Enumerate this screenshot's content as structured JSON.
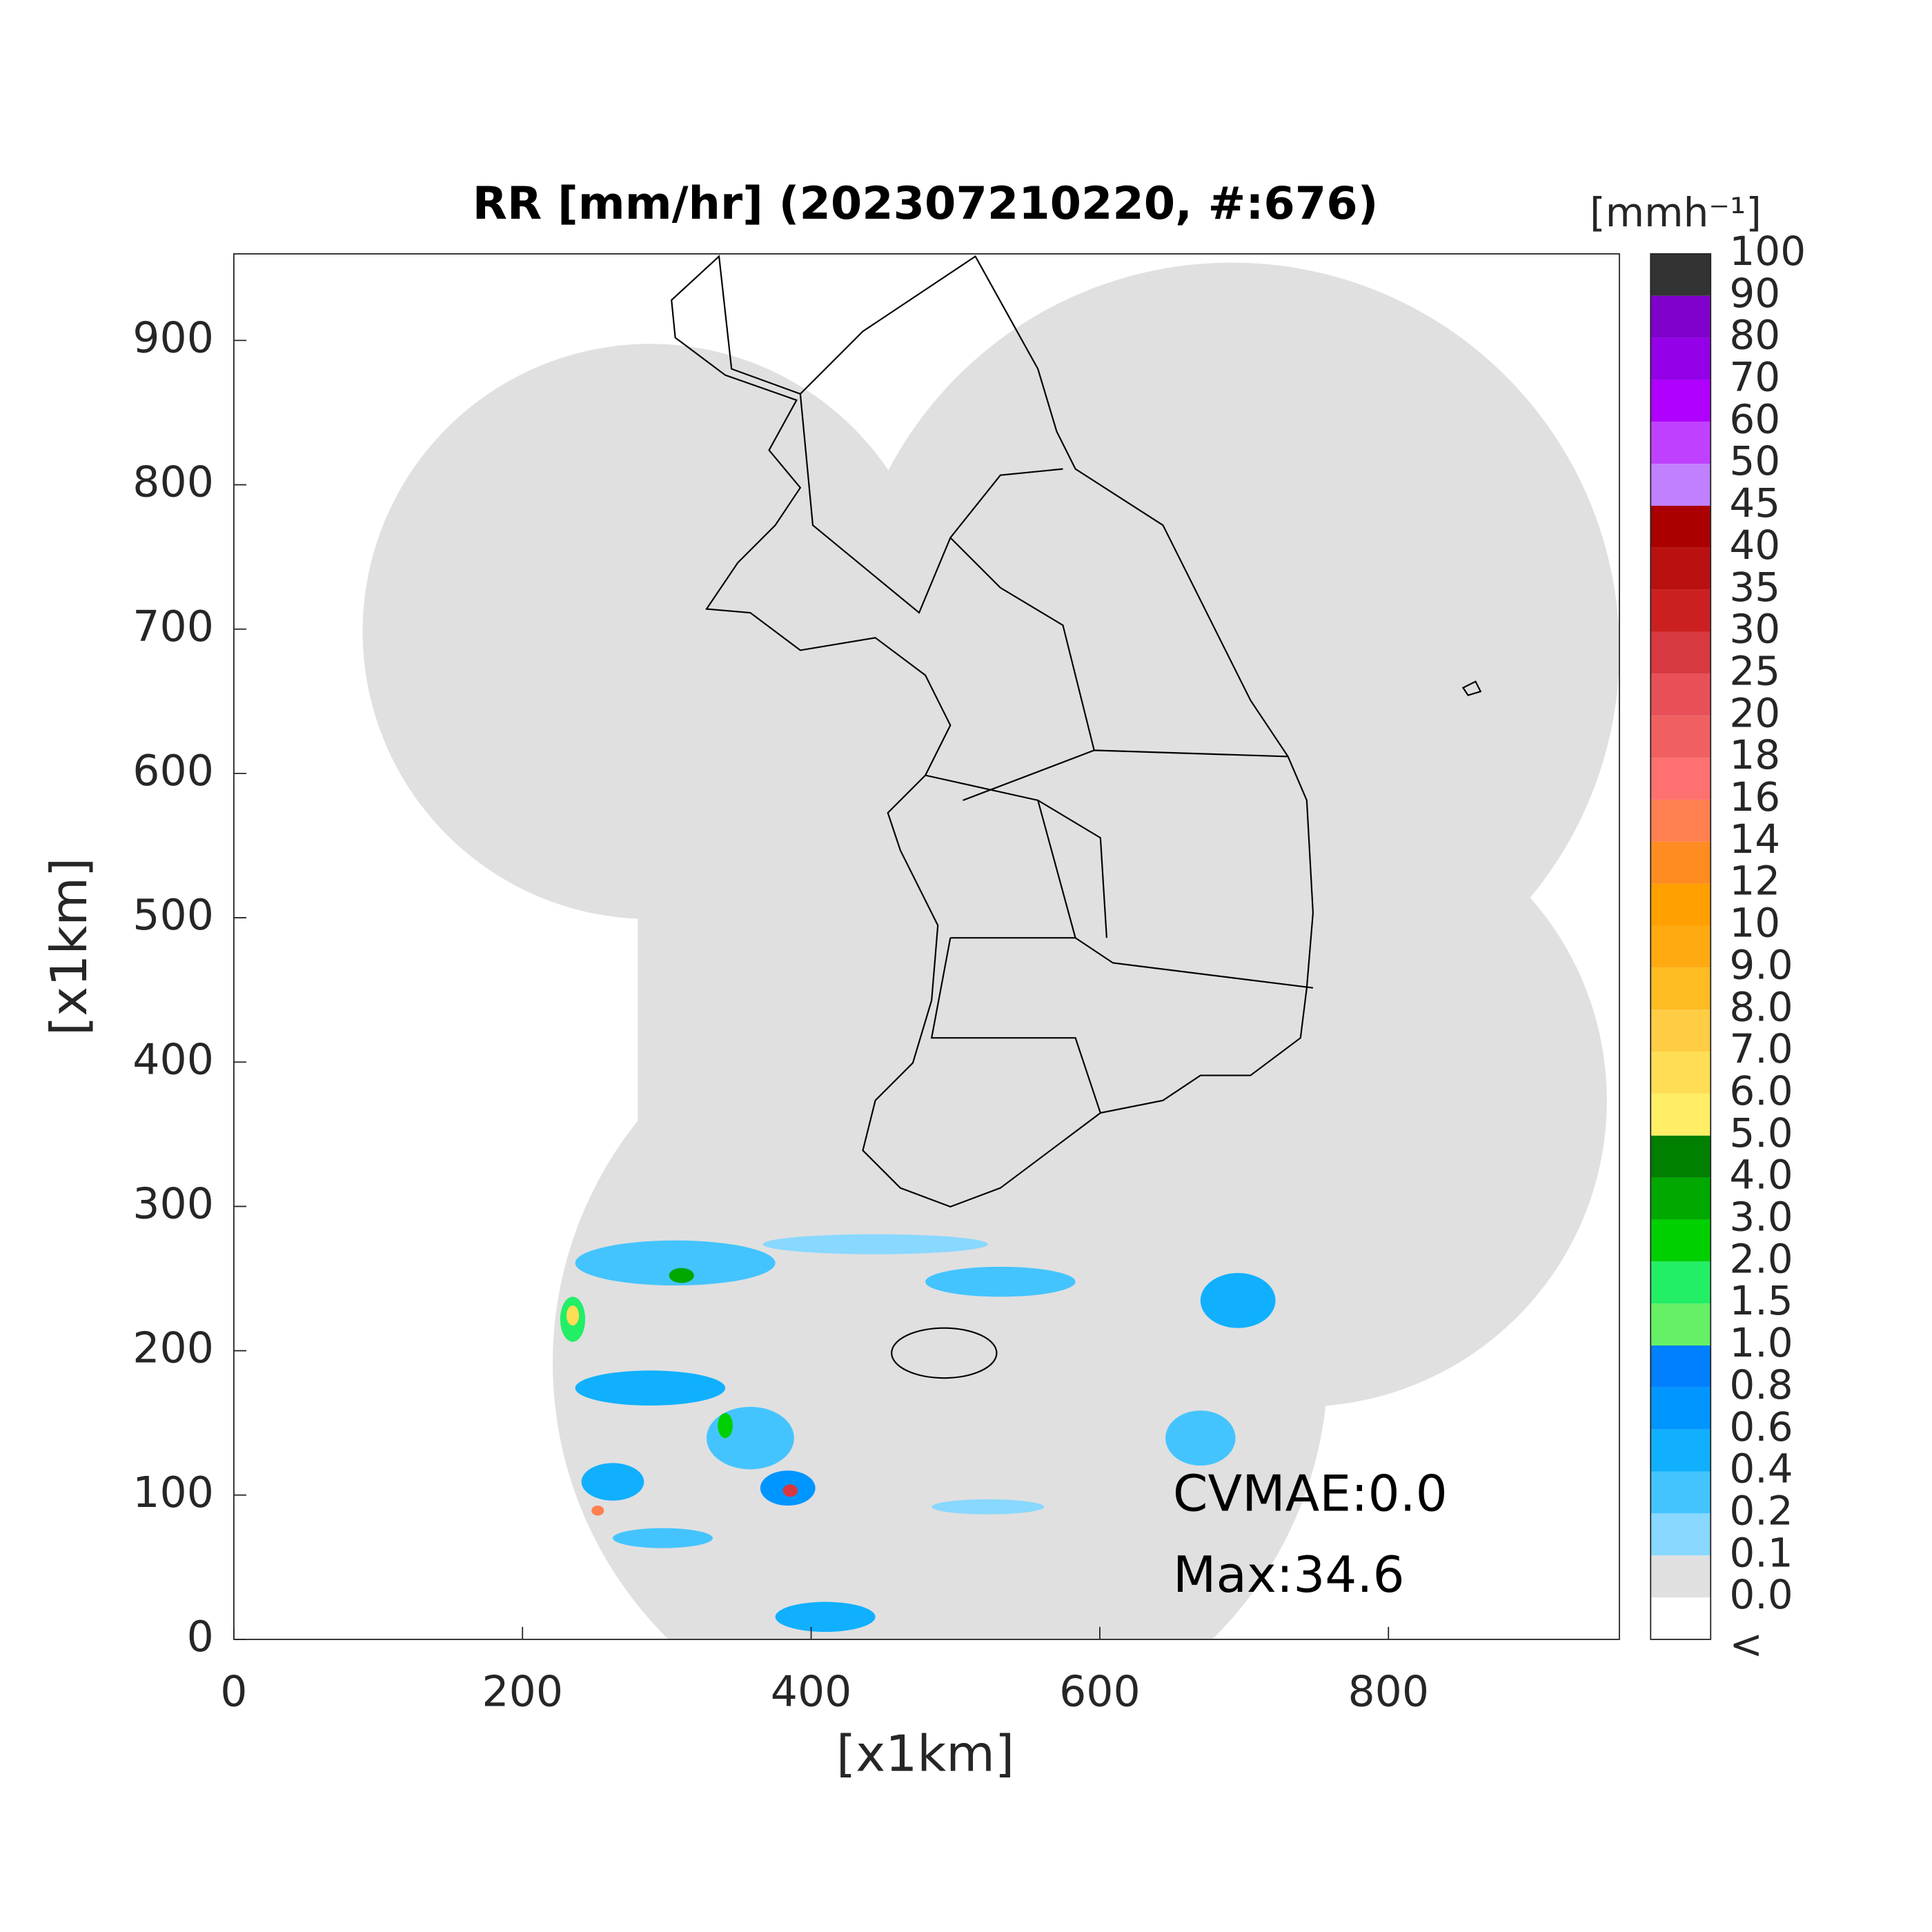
{
  "chart_data": {
    "type": "map",
    "title": "RR [mm/hr] (202307210220, #:676)",
    "xlabel": "[x1km]",
    "ylabel": "[x1km]",
    "xlim": [
      0,
      960
    ],
    "ylim": [
      0,
      960
    ],
    "xticks": [
      0,
      200,
      400,
      600,
      800
    ],
    "yticks": [
      0,
      100,
      200,
      300,
      400,
      500,
      600,
      700,
      800,
      900
    ],
    "annotations": [
      "CVMAE:0.0",
      "Max:34.6"
    ],
    "colorbar": {
      "unit": "[mmh⁻¹]",
      "labels": [
        "<",
        "0.0",
        "0.1",
        "0.2",
        "0.4",
        "0.6",
        "0.8",
        "1.0",
        "1.5",
        "2.0",
        "3.0",
        "4.0",
        "5.0",
        "6.0",
        "7.0",
        "8.0",
        "9.0",
        "10",
        "12",
        "14",
        "16",
        "18",
        "20",
        "25",
        "30",
        "35",
        "40",
        "45",
        "50",
        "60",
        "70",
        "80",
        "90",
        "100"
      ],
      "colors": [
        "#ffffff",
        "#e0e0e0",
        "#88d8ff",
        "#44c4ff",
        "#10b0ff",
        "#0096ff",
        "#0080ff",
        "#66f066",
        "#22ee66",
        "#00d000",
        "#00a800",
        "#007f00",
        "#ffee66",
        "#ffdd55",
        "#ffcc44",
        "#ffbb22",
        "#ffaa11",
        "#ffa000",
        "#ff8c20",
        "#ff8050",
        "#ff7070",
        "#f06060",
        "#e85058",
        "#d83840",
        "#cc2020",
        "#bb1010",
        "#aa0000",
        "#c080ff",
        "#c040ff",
        "#b000ff",
        "#9400e8",
        "#8000cc",
        "#333333"
      ]
    }
  }
}
